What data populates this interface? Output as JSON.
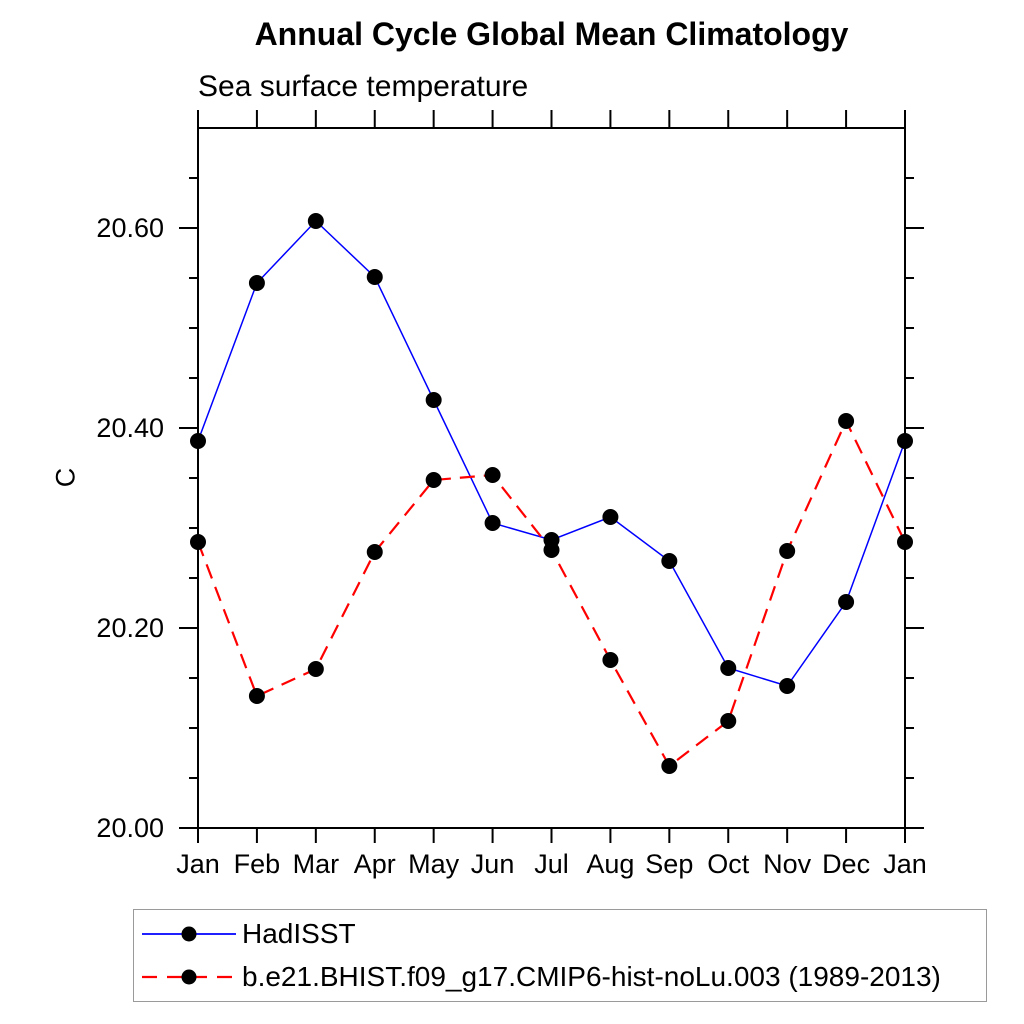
{
  "chart_data": {
    "type": "line",
    "title": "Annual Cycle Global Mean Climatology",
    "subtitle": "Sea surface temperature",
    "ylabel": "C",
    "xlabel": "",
    "categories": [
      "Jan",
      "Feb",
      "Mar",
      "Apr",
      "May",
      "Jun",
      "Jul",
      "Aug",
      "Sep",
      "Oct",
      "Nov",
      "Dec",
      "Jan"
    ],
    "ylim": [
      20.0,
      20.7
    ],
    "ytick_values": [
      20.0,
      20.2,
      20.4,
      20.6
    ],
    "ytick_labels": [
      "20.00",
      "20.20",
      "20.40",
      "20.60"
    ],
    "y_minor_step": 0.05,
    "grid": false,
    "legend_position": "bottom-left-box",
    "axis_color": "#000000",
    "series": [
      {
        "name": "HadISST",
        "color": "#0000ff",
        "style": "solid",
        "marker": "circle",
        "marker_color": "#000000",
        "values": [
          20.387,
          20.545,
          20.607,
          20.551,
          20.428,
          20.305,
          20.288,
          20.311,
          20.267,
          20.16,
          20.142,
          20.226,
          20.387
        ]
      },
      {
        "name": "b.e21.BHIST.f09_g17.CMIP6-hist-noLu.003 (1989-2013)",
        "color": "#ff0000",
        "style": "dashed",
        "marker": "circle",
        "marker_color": "#000000",
        "values": [
          20.286,
          20.132,
          20.159,
          20.276,
          20.348,
          20.353,
          20.278,
          20.168,
          20.062,
          20.107,
          20.277,
          20.407,
          20.286
        ]
      }
    ]
  }
}
